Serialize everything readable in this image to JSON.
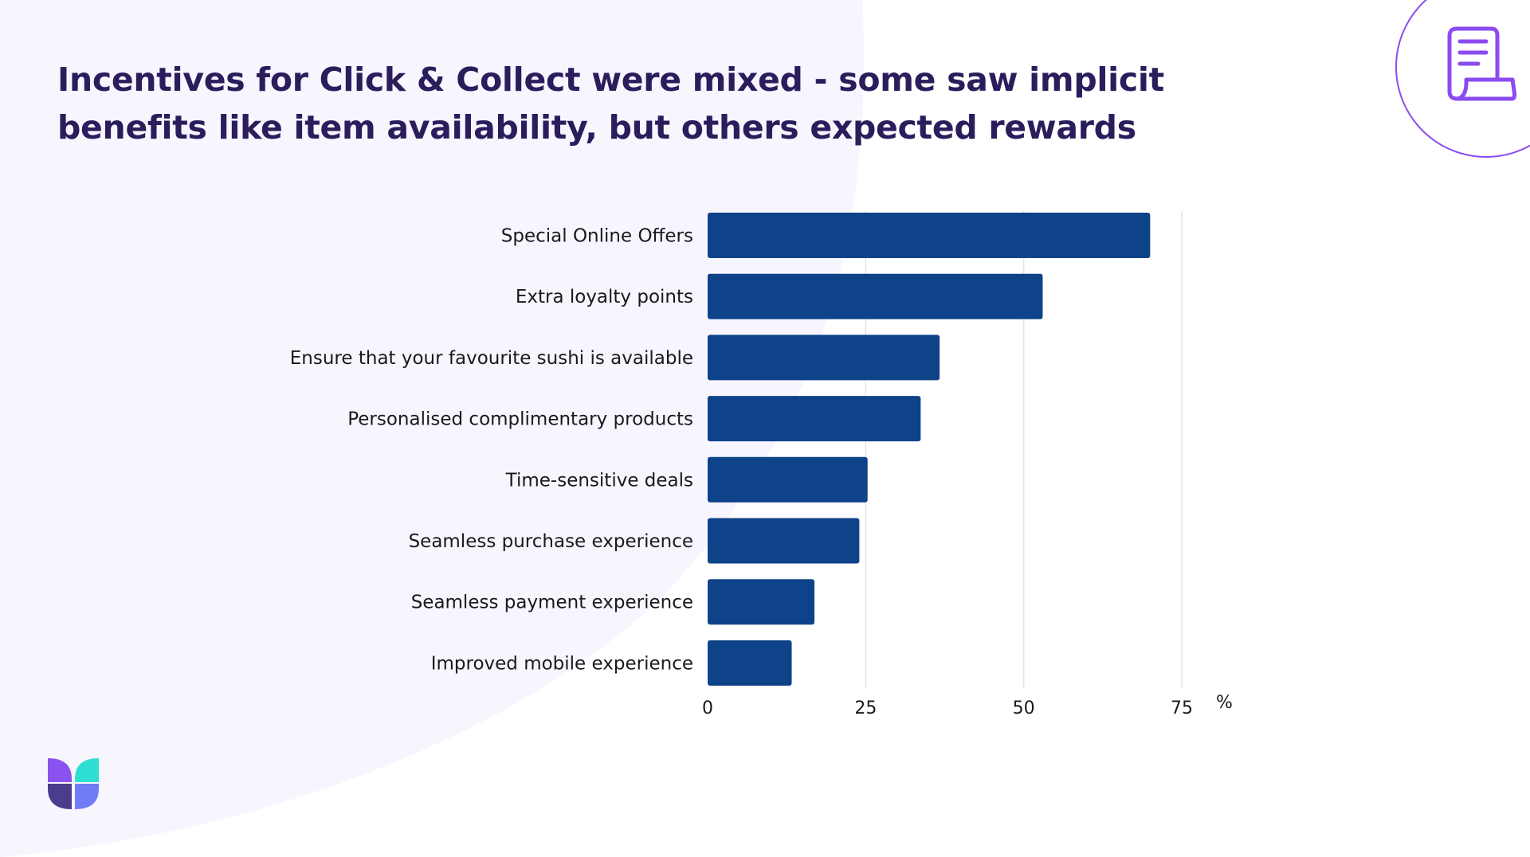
{
  "title": "Incentives for Click & Collect were mixed - some saw implicit benefits like item availability, but others expected rewards",
  "icons": {
    "top_right": "document-receipt-icon",
    "bottom_left": "brand-logo-icon"
  },
  "colors": {
    "bar": "#0f4389",
    "title": "#2b1d5c",
    "background_blob": "#f7f5fd",
    "accent_purple": "#8b4bf0",
    "logo_teal": "#2ee0d4",
    "logo_purple": "#8a52f0",
    "logo_dark": "#4a3d8c",
    "logo_blue": "#6f7cf6"
  },
  "chart_data": {
    "type": "bar",
    "orientation": "horizontal",
    "categories": [
      "Special Online Offers",
      "Extra loyalty points",
      "Ensure that your favourite sushi is available",
      "Personalised complimentary products",
      "Time-sensitive deals",
      "Seamless purchase experience",
      "Seamless payment experience",
      "Improved mobile experience"
    ],
    "values": [
      70,
      53,
      36.7,
      33.7,
      25.3,
      24,
      16.9,
      13.3
    ],
    "xlim": [
      0,
      75
    ],
    "xticks": [
      "0",
      "25",
      "50",
      "75"
    ],
    "xunit": "%",
    "grid": true
  }
}
